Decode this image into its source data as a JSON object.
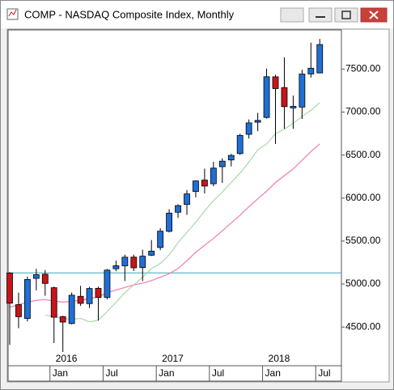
{
  "chart_data": {
    "type": "candlestick",
    "title": "COMP - NASDAQ Composite Index, Monthly",
    "month_labels": [
      null,
      null,
      null,
      null,
      null,
      "Jan",
      null,
      null,
      null,
      null,
      null,
      "Jul",
      null,
      null,
      null,
      null,
      null,
      "Jan",
      null,
      null,
      null,
      null,
      null,
      "Jul",
      null,
      null,
      null,
      null,
      null,
      "Jan",
      null,
      null,
      null,
      null,
      null,
      "Jul"
    ],
    "year_labels": [
      null,
      null,
      null,
      null,
      null,
      "2016",
      null,
      null,
      null,
      null,
      null,
      null,
      null,
      null,
      null,
      null,
      null,
      "2017",
      null,
      null,
      null,
      null,
      null,
      null,
      null,
      null,
      null,
      null,
      null,
      "2018",
      null,
      null,
      null,
      null,
      null,
      null
    ],
    "open": [
      5128,
      4760,
      4600,
      5066,
      5114,
      4957,
      4620,
      4541,
      4857,
      4772,
      4950,
      4845,
      5178,
      5212,
      5313,
      5191,
      5335,
      5425,
      5613,
      5835,
      5926,
      6076,
      6209,
      6166,
      6365,
      6443,
      6517,
      6741,
      6882,
      6937,
      7410,
      7285,
      7048,
      7058,
      7443,
      7455
    ],
    "high": [
      5139,
      4900,
      5085,
      5176,
      5163,
      4970,
      4633,
      4900,
      4979,
      4967,
      4970,
      5175,
      5272,
      5342,
      5342,
      5399,
      5512,
      5649,
      5870,
      5928,
      6093,
      6205,
      6342,
      6422,
      6462,
      6514,
      6748,
      6914,
      6990,
      7506,
      7432,
      7637,
      7192,
      7492,
      7807,
      7850
    ],
    "low": [
      4292,
      4487,
      4565,
      4927,
      4864,
      4314,
      4210,
      4530,
      4746,
      4721,
      4574,
      4822,
      5149,
      5034,
      5151,
      5034,
      5326,
      5394,
      5600,
      5769,
      5805,
      6008,
      6053,
      6137,
      6177,
      6368,
      6503,
      6692,
      6778,
      6924,
      6630,
      6805,
      6806,
      6920,
      7401,
      7450
    ],
    "close": [
      4777,
      4620,
      5053,
      5109,
      5007,
      4614,
      4558,
      4870,
      4775,
      4948,
      4843,
      5162,
      5213,
      5312,
      5189,
      5324,
      5383,
      5615,
      5825,
      5912,
      6048,
      6199,
      6140,
      6348,
      6429,
      6496,
      6728,
      6874,
      6903,
      7411,
      7273,
      7063,
      7066,
      7442,
      7510,
      7785
    ],
    "up_color": "#1f6fd6",
    "down_color": "#c8151b",
    "ma_short": {
      "color": "#a8d8a8",
      "values": [
        null,
        null,
        null,
        null,
        4640,
        4620,
        4600,
        4590,
        4600,
        4560,
        4580,
        4680,
        4790,
        4900,
        4990,
        5080,
        5180,
        5240,
        5340,
        5480,
        5600,
        5720,
        5850,
        5970,
        6070,
        6180,
        6290,
        6420,
        6560,
        6630,
        6750,
        6800,
        6870,
        6950,
        7020,
        7110
      ]
    },
    "ma_long": {
      "color": "#f07cb0",
      "values": [
        4730,
        4760,
        4790,
        4810,
        4820,
        4800,
        4790,
        4800,
        4810,
        4830,
        4850,
        4900,
        4930,
        4960,
        4990,
        5010,
        5040,
        5080,
        5120,
        5180,
        5270,
        5370,
        5450,
        5530,
        5620,
        5710,
        5800,
        5900,
        5990,
        6080,
        6180,
        6260,
        6340,
        6440,
        6540,
        6630
      ]
    },
    "hline": {
      "value": 5130,
      "color": "#3aa8b8"
    },
    "ylim": [
      4050,
      7955
    ],
    "yticks": [
      {
        "value": 4500,
        "label": "4500.00"
      },
      {
        "value": 5000,
        "label": "5000.00"
      },
      {
        "value": 5500,
        "label": "5500.00"
      },
      {
        "value": 6000,
        "label": "6000.00"
      },
      {
        "value": 6500,
        "label": "6500.00"
      },
      {
        "value": 7000,
        "label": "7000.00"
      },
      {
        "value": 7500,
        "label": "7500.00"
      }
    ]
  }
}
